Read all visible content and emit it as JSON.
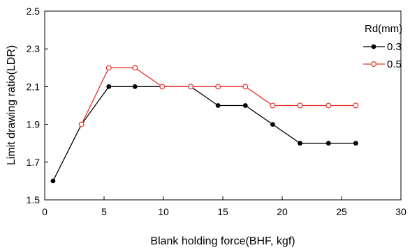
{
  "chart_data": {
    "type": "line",
    "xlabel": "Blank holding force(BHF, kgf)",
    "ylabel": "Limit drawing ratio(LDR)",
    "xlim": [
      0,
      30
    ],
    "ylim": [
      1.5,
      2.5
    ],
    "xticks": [
      0,
      5,
      10,
      15,
      20,
      25,
      30
    ],
    "yticks": [
      1.5,
      1.7,
      1.9,
      2.1,
      2.3,
      2.5
    ],
    "xtick_labels": [
      "0",
      "5",
      "10",
      "15",
      "20",
      "25",
      "30"
    ],
    "ytick_labels": [
      "1.5",
      "1.7",
      "1.9",
      "2.1",
      "2.3",
      "2.5"
    ],
    "grid": false,
    "legend": {
      "title": "Rd(mm)",
      "placement": "top-right"
    },
    "series": [
      {
        "name": "0.3",
        "color": "#000000",
        "marker": "filled-circle",
        "x": [
          0.7,
          3.1,
          5.4,
          7.6,
          9.9,
          12.3,
          14.6,
          16.9,
          19.2,
          21.5,
          23.9,
          26.2
        ],
        "y": [
          1.6,
          1.9,
          2.1,
          2.1,
          2.1,
          2.1,
          2.0,
          2.0,
          1.9,
          1.8,
          1.8,
          1.8
        ]
      },
      {
        "name": "0.5",
        "color": "#e8312a",
        "marker": "open-circle",
        "x": [
          3.1,
          5.4,
          7.6,
          9.9,
          12.3,
          14.6,
          16.9,
          19.2,
          21.5,
          23.9,
          26.2
        ],
        "y": [
          1.9,
          2.2,
          2.2,
          2.1,
          2.1,
          2.1,
          2.1,
          2.0,
          2.0,
          2.0,
          2.0
        ]
      }
    ]
  }
}
